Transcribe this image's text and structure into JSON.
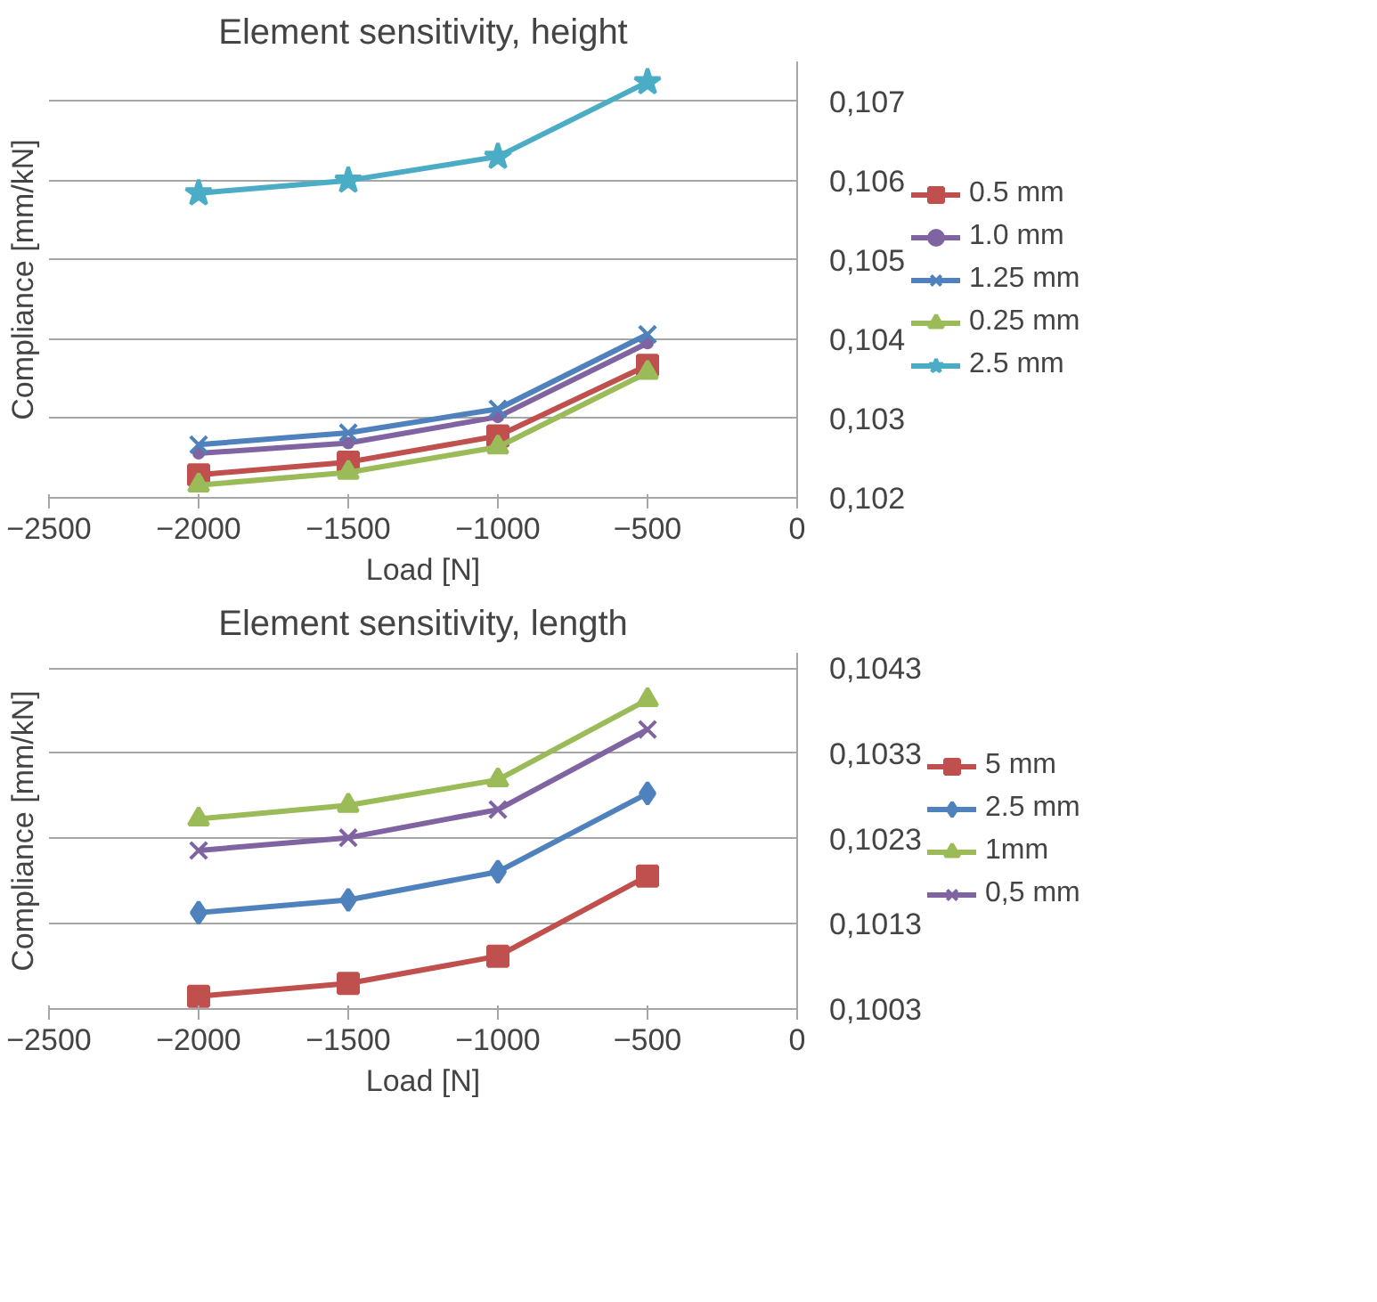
{
  "chart_data": [
    {
      "type": "line",
      "title": "Element sensitivity, height",
      "xlabel": "Load [N]",
      "ylabel": "Compliance [mm/kN]",
      "x": [
        -2000,
        -1500,
        -1000,
        -500
      ],
      "xlim": [
        -2500,
        0
      ],
      "xticks": [
        -2500,
        -2000,
        -1500,
        -1000,
        -500,
        0
      ],
      "ylim": [
        0.102,
        0.1075
      ],
      "yticks": [
        {
          "value": 0.102,
          "label": "0,102"
        },
        {
          "value": 0.103,
          "label": "0,103"
        },
        {
          "value": 0.104,
          "label": "0,104"
        },
        {
          "value": 0.105,
          "label": "0,105"
        },
        {
          "value": 0.106,
          "label": "0,106"
        },
        {
          "value": 0.107,
          "label": "0,107"
        }
      ],
      "grid": "y",
      "legend": "right",
      "series": [
        {
          "name": "0.5 mm",
          "color": "#c0504d",
          "marker": "square",
          "values": [
            0.10229,
            0.10245,
            0.10278,
            0.10367
          ]
        },
        {
          "name": "1.0 mm",
          "color": "#8064a2",
          "marker": "circle",
          "values": [
            0.10256,
            0.10269,
            0.10302,
            0.10395
          ]
        },
        {
          "name": "1.25 mm",
          "color": "#4f81bd",
          "marker": "cross",
          "values": [
            0.10267,
            0.10282,
            0.10312,
            0.10406
          ]
        },
        {
          "name": "0.25 mm",
          "color": "#9bbb59",
          "marker": "triangle",
          "values": [
            0.10216,
            0.10232,
            0.10264,
            0.10358
          ]
        },
        {
          "name": "2.5 mm",
          "color": "#4bacc6",
          "marker": "star",
          "values": [
            0.10584,
            0.106,
            0.1063,
            0.10724
          ]
        }
      ]
    },
    {
      "type": "line",
      "title": "Element sensitivity, length",
      "xlabel": "Load [N]",
      "ylabel": "Compliance [mm/kN]",
      "x": [
        -2000,
        -1500,
        -1000,
        -500
      ],
      "xlim": [
        -2500,
        0
      ],
      "xticks": [
        -2500,
        -2000,
        -1500,
        -1000,
        -500,
        0
      ],
      "ylim": [
        0.1003,
        0.10448
      ],
      "yticks": [
        {
          "value": 0.1003,
          "label": "0,1003"
        },
        {
          "value": 0.1013,
          "label": "0,1013"
        },
        {
          "value": 0.1023,
          "label": "0,1023"
        },
        {
          "value": 0.1033,
          "label": "0,1033"
        },
        {
          "value": 0.1043,
          "label": "0,1043"
        }
      ],
      "grid": "y",
      "legend": "right",
      "series": [
        {
          "name": "5 mm",
          "color": "#c0504d",
          "marker": "square",
          "values": [
            0.10045,
            0.1006,
            0.10092,
            0.10186
          ]
        },
        {
          "name": "2.5 mm",
          "color": "#4f81bd",
          "marker": "diamond",
          "values": [
            0.10143,
            0.10158,
            0.10191,
            0.10283
          ]
        },
        {
          "name": "1mm",
          "color": "#9bbb59",
          "marker": "triangle",
          "values": [
            0.10253,
            0.10269,
            0.10299,
            0.10393
          ]
        },
        {
          "name": "0,5 mm",
          "color": "#8064a2",
          "marker": "cross",
          "values": [
            0.10216,
            0.10231,
            0.10264,
            0.10358
          ]
        }
      ]
    }
  ]
}
